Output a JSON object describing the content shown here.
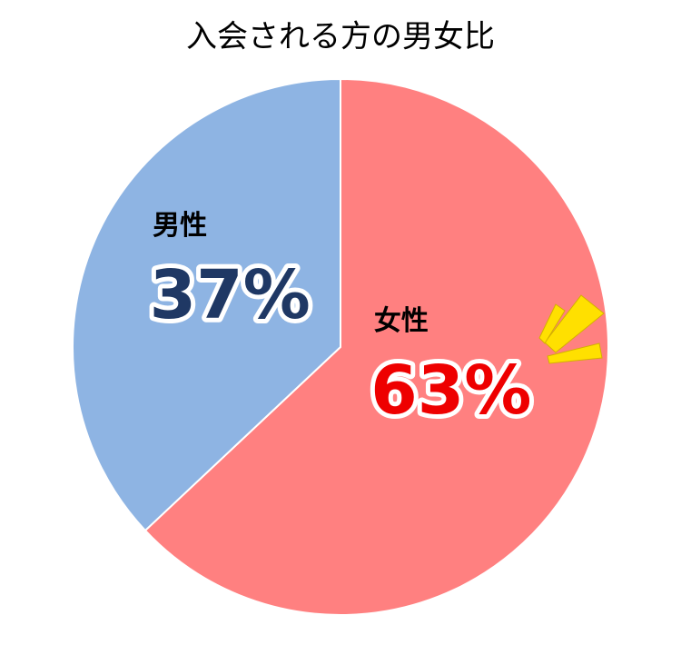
{
  "chart_data": {
    "type": "pie",
    "title": "入会される方の男女比",
    "categories": [
      "女性",
      "男性"
    ],
    "values": [
      63,
      37
    ],
    "value_labels": [
      "63%",
      "37%"
    ],
    "colors": [
      "#ff8080",
      "#8eb4e3"
    ],
    "label_colors": [
      "#ee0000",
      "#1f3864"
    ]
  }
}
